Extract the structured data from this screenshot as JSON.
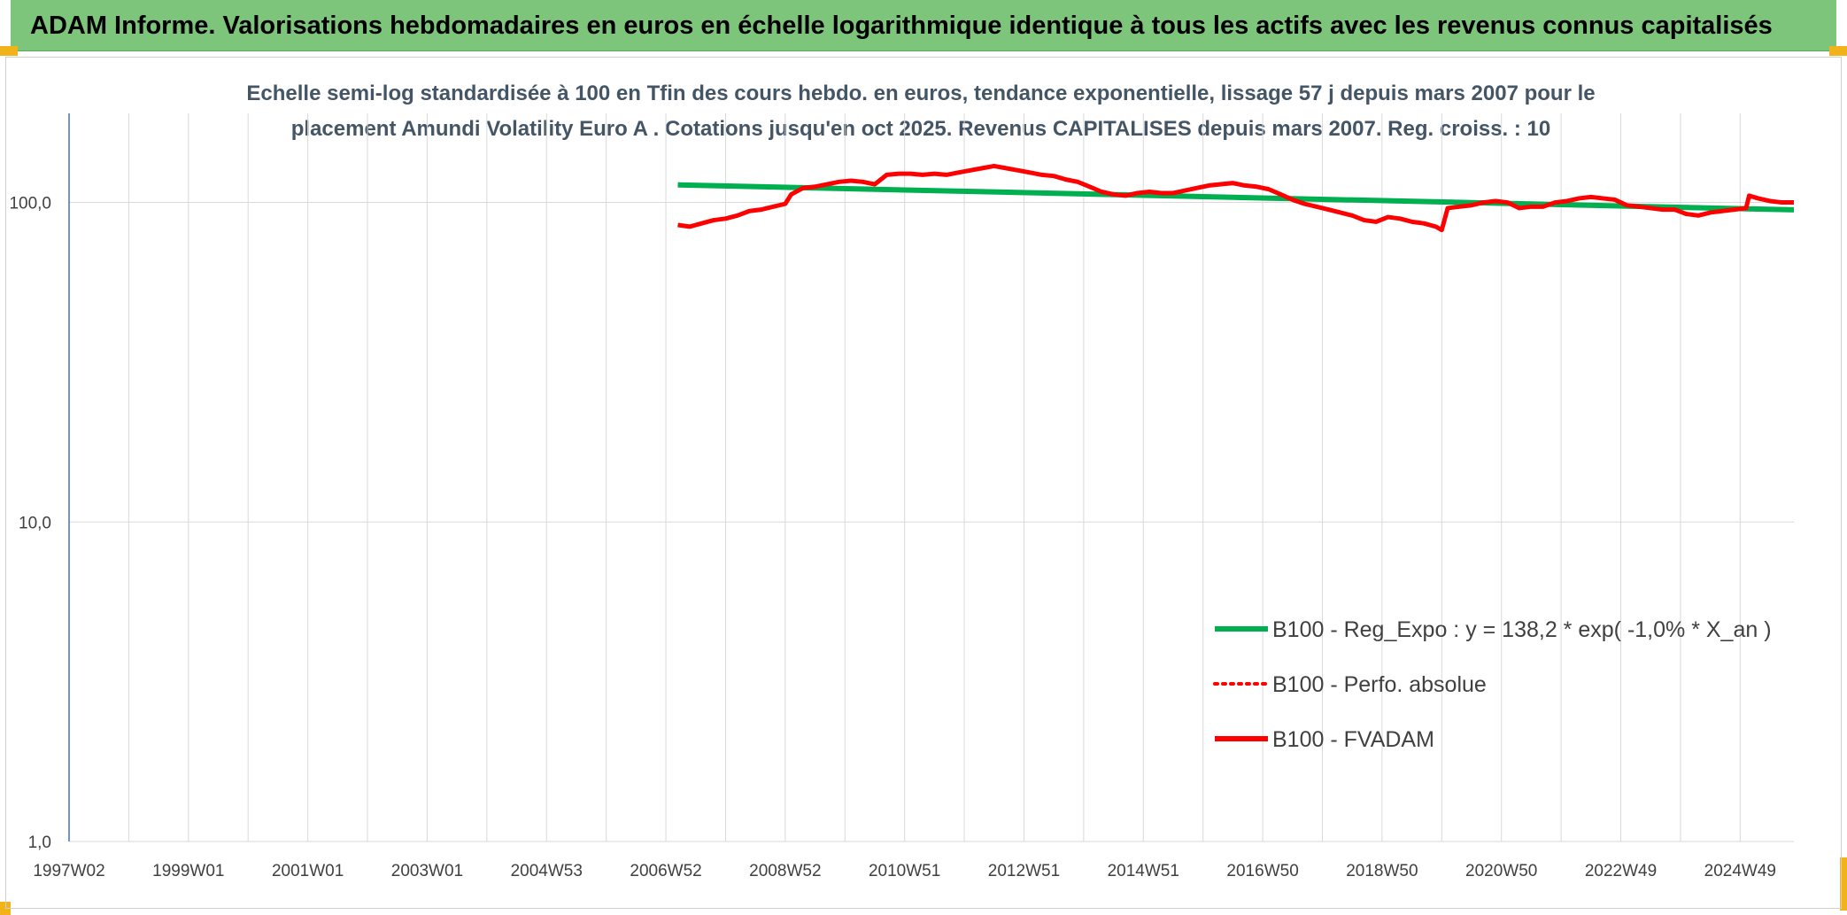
{
  "banner": {
    "title": "ADAM Informe. Valorisations hebdomadaires en euros en échelle logarithmique identique à tous les actifs avec les revenus connus capitalisés"
  },
  "colors": {
    "banner_bg": "#7dc57a",
    "regression": "#00b050",
    "fvadam": "#ff0000",
    "perfo": "#ff0000",
    "grid": "#d9d9d9",
    "accent": "#f2b21a"
  },
  "chart_data": {
    "type": "line",
    "title_lines": [
      "Echelle semi-log standardisée à 100 en Tfin des cours hebdo. en euros, tendance exponentielle, lissage 57 j depuis mars 2007 pour le",
      "placement Amundi Volatility Euro A . Cotations jusqu'en oct 2025. Revenus CAPITALISES depuis mars 2007. Reg. croiss. : 10"
    ],
    "y_scale": "log",
    "ylim": [
      1,
      190
    ],
    "y_ticks": [
      1,
      10,
      100
    ],
    "y_tick_labels": [
      "1,0",
      "10,0",
      "100,0"
    ],
    "xlim": [
      1997.0,
      2025.9
    ],
    "x_ticks": [
      1997.0,
      1999.0,
      2001.0,
      2003.0,
      2005.0,
      2007.0,
      2009.0,
      2011.0,
      2013.0,
      2015.0,
      2017.0,
      2019.0,
      2021.0,
      2023.0,
      2025.0
    ],
    "x_tick_labels": [
      "1997W02",
      "1999W01",
      "2001W01",
      "2003W01",
      "2004W53",
      "2006W52",
      "2008W52",
      "2010W51",
      "2012W51",
      "2014W51",
      "2016W50",
      "2018W50",
      "2020W50",
      "2022W49",
      "2024W49"
    ],
    "grid": true,
    "legend_position": "lower-right",
    "series": [
      {
        "name": "B100 - Reg_Expo : y = 138,2 * exp( -1,0% *  X_an )",
        "style": "solid",
        "color": "#00b050",
        "x": [
          2007.2,
          2025.9
        ],
        "values": [
          113.5,
          94.8
        ]
      },
      {
        "name": "B100 - Perfo. absolue",
        "style": "dotted",
        "color": "#ff0000",
        "x": [],
        "values": []
      },
      {
        "name": "B100 - FVADAM",
        "style": "solid",
        "color": "#ff0000",
        "x": [
          2007.2,
          2007.4,
          2007.6,
          2007.8,
          2008.0,
          2008.2,
          2008.4,
          2008.6,
          2008.8,
          2009.0,
          2009.1,
          2009.3,
          2009.5,
          2009.7,
          2009.9,
          2010.1,
          2010.3,
          2010.5,
          2010.7,
          2010.9,
          2011.1,
          2011.3,
          2011.5,
          2011.7,
          2011.9,
          2012.1,
          2012.3,
          2012.5,
          2012.7,
          2012.9,
          2013.1,
          2013.3,
          2013.5,
          2013.7,
          2013.9,
          2014.1,
          2014.3,
          2014.5,
          2014.7,
          2014.9,
          2015.1,
          2015.3,
          2015.5,
          2015.7,
          2015.9,
          2016.1,
          2016.3,
          2016.5,
          2016.7,
          2016.9,
          2017.1,
          2017.3,
          2017.5,
          2017.7,
          2017.9,
          2018.1,
          2018.3,
          2018.5,
          2018.7,
          2018.9,
          2019.1,
          2019.3,
          2019.5,
          2019.7,
          2019.9,
          2020.0,
          2020.1,
          2020.3,
          2020.5,
          2020.7,
          2020.9,
          2021.1,
          2021.3,
          2021.5,
          2021.7,
          2021.9,
          2022.1,
          2022.3,
          2022.5,
          2022.7,
          2022.9,
          2023.1,
          2023.3,
          2023.5,
          2023.7,
          2023.9,
          2024.1,
          2024.3,
          2024.5,
          2024.7,
          2024.9,
          2025.1,
          2025.15,
          2025.3,
          2025.5,
          2025.7,
          2025.9
        ],
        "values": [
          85,
          84,
          86,
          88,
          89,
          91,
          94,
          95,
          97,
          99,
          106,
          111,
          112,
          114,
          116,
          117,
          116,
          114,
          122,
          123,
          123,
          122,
          123,
          122,
          124,
          126,
          128,
          130,
          128,
          126,
          124,
          122,
          121,
          118,
          116,
          112,
          108,
          106,
          105,
          107,
          108,
          107,
          107,
          109,
          111,
          113,
          114,
          115,
          113,
          112,
          110,
          106,
          102,
          99,
          97,
          95,
          93,
          91,
          88,
          87,
          90,
          89,
          87,
          86,
          84,
          82,
          96,
          97,
          98,
          100,
          101,
          100,
          96,
          97,
          97,
          100,
          101,
          103,
          104,
          103,
          102,
          98,
          97,
          96,
          95,
          95,
          92,
          91,
          93,
          94,
          95,
          96,
          105,
          103,
          101,
          100,
          100
        ]
      }
    ]
  }
}
